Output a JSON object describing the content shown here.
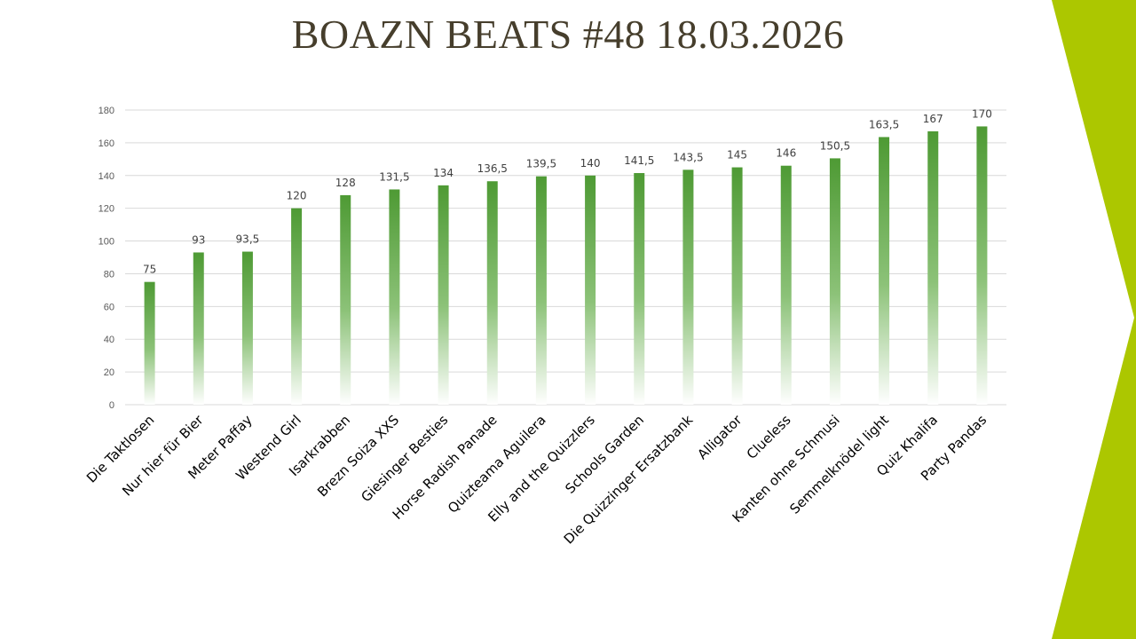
{
  "title": "BOAZN BEATS #48 18.03.2026",
  "colors": {
    "title": "#463e2c",
    "accent": "#acc700",
    "bar_top": "#4e9a34",
    "bar_bottom": "#ffffff",
    "grid": "#d9d9d9"
  },
  "chart_data": {
    "type": "bar",
    "title": "",
    "xlabel": "",
    "ylabel": "",
    "ylim": [
      0,
      180
    ],
    "yticks": [
      0,
      20,
      40,
      60,
      80,
      100,
      120,
      140,
      160,
      180
    ],
    "grid": true,
    "legend": "none",
    "categories": [
      "Die Taktlosen",
      "Nur hier für Bier",
      "Meter Paffay",
      "Westend Girl",
      "Isarkrabben",
      "Brezn Soiza XXS",
      "Giesinger Besties",
      "Horse Radish Panade",
      "Quizteama Aguilera",
      "Elly and the Quizzlers",
      "Schools Garden",
      "Die Quizzinger Ersatzbank",
      "Alligator",
      "Clueless",
      "Kanten ohne Schmusi",
      "Semmelknödel light",
      "Quiz Khalifa",
      "Party Pandas"
    ],
    "values": [
      75,
      93,
      93.5,
      120,
      128,
      131.5,
      134,
      136.5,
      139.5,
      140,
      141.5,
      143.5,
      145,
      146,
      150.5,
      163.5,
      167,
      170
    ],
    "data_labels": [
      "75",
      "93",
      "93,5",
      "120",
      "128",
      "131,5",
      "134",
      "136,5",
      "139,5",
      "140",
      "141,5",
      "143,5",
      "145",
      "146",
      "150,5",
      "163,5",
      "167",
      "170"
    ]
  }
}
